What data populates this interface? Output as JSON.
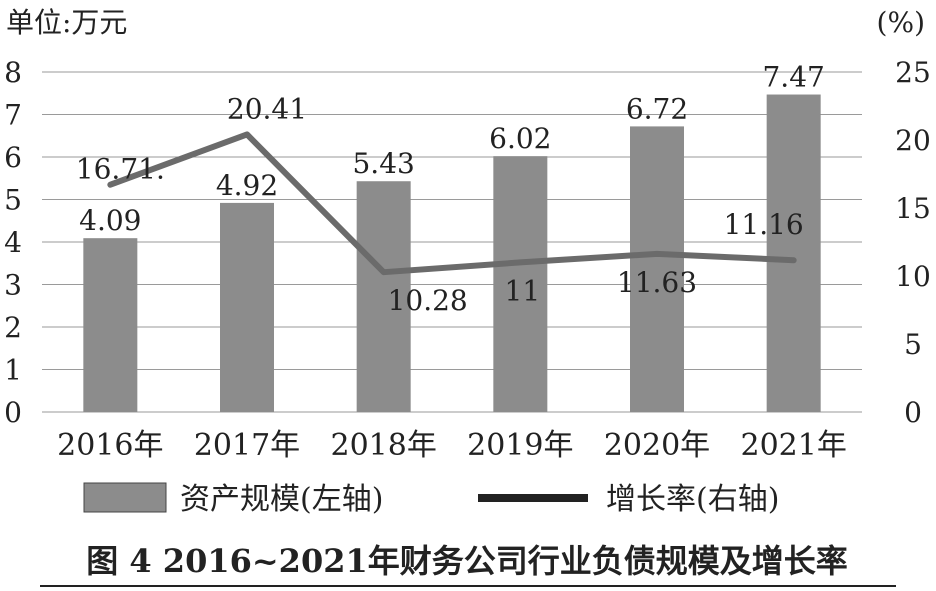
{
  "chart_data": {
    "type": "bar+line",
    "left_unit_label": "单位:万元",
    "right_unit_label": "(%)",
    "categories": [
      "2016年",
      "2017年",
      "2018年",
      "2019年",
      "2020年",
      "2021年"
    ],
    "series": [
      {
        "name": "资产规模(左轴)",
        "type": "bar",
        "axis": "left",
        "values": [
          4.09,
          4.92,
          5.43,
          6.02,
          6.72,
          7.47
        ],
        "labels": [
          "4.09",
          "4.92",
          "5.43",
          "6.02",
          "6.72",
          "7.47"
        ]
      },
      {
        "name": "增长率(右轴)",
        "type": "line",
        "axis": "right",
        "values": [
          16.71,
          20.41,
          10.28,
          11,
          11.63,
          11.16
        ],
        "labels": [
          "16.71.",
          "20.41",
          "10.28",
          "11",
          "11.63",
          "11.16"
        ]
      }
    ],
    "y_left": {
      "range": [
        0,
        8
      ],
      "ticks": [
        "0",
        "1",
        "2",
        "3",
        "4",
        "5",
        "6",
        "7",
        "8"
      ]
    },
    "y_right": {
      "range": [
        0,
        25
      ],
      "ticks": [
        "0",
        "5",
        "10",
        "15",
        "20",
        "25"
      ]
    },
    "grid": true,
    "legend": "bottom",
    "caption": "图 4 2016~2021年财务公司行业负债规模及增长率",
    "colors": {
      "bar": "#8c8c8c",
      "line": "#6b6b6b",
      "legend_line": "#222222",
      "grid": "#9a9a9a",
      "text": "#222222"
    }
  }
}
